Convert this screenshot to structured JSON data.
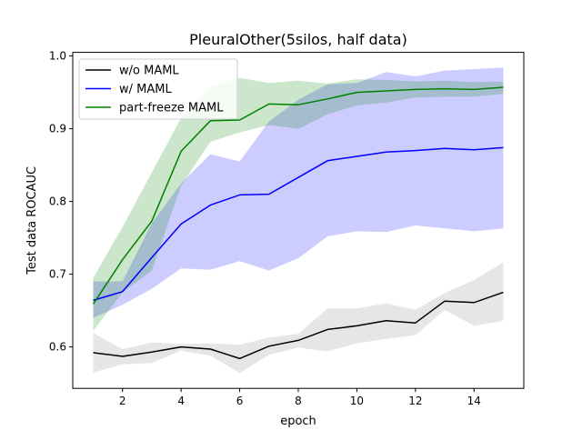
{
  "chart_data": {
    "type": "line",
    "title": "PleuralOther(5silos, half data)",
    "xlabel": "epoch",
    "ylabel": "Test data ROCAUC",
    "xlim": [
      0.3,
      15.7
    ],
    "ylim": [
      0.543,
      1.005
    ],
    "xticks": [
      2,
      4,
      6,
      8,
      10,
      12,
      14
    ],
    "yticks": [
      0.6,
      0.7,
      0.8,
      0.9,
      1.0
    ],
    "xtick_labels": [
      "2",
      "4",
      "6",
      "8",
      "10",
      "12",
      "14"
    ],
    "ytick_labels": [
      "0.6",
      "0.7",
      "0.8",
      "0.9",
      "1.0"
    ],
    "legend_position": "upper-left",
    "grid": false,
    "x": [
      1,
      2,
      3,
      4,
      5,
      6,
      7,
      8,
      9,
      10,
      11,
      12,
      13,
      14,
      15
    ],
    "series": [
      {
        "name": "w/o MAML",
        "color": "#000000",
        "band_color": "#808080",
        "values": [
          0.592,
          0.587,
          0.593,
          0.6,
          0.597,
          0.584,
          0.601,
          0.609,
          0.624,
          0.629,
          0.636,
          0.633,
          0.663,
          0.661,
          0.675
        ],
        "lower": [
          0.565,
          0.576,
          0.578,
          0.595,
          0.588,
          0.564,
          0.589,
          0.599,
          0.594,
          0.605,
          0.611,
          0.616,
          0.651,
          0.629,
          0.636
        ],
        "upper": [
          0.619,
          0.597,
          0.606,
          0.604,
          0.605,
          0.603,
          0.613,
          0.618,
          0.653,
          0.653,
          0.66,
          0.651,
          0.674,
          0.692,
          0.716
        ]
      },
      {
        "name": "w/ MAML",
        "color": "#0000ff",
        "band_color": "#0000ff",
        "values": [
          0.664,
          0.676,
          0.723,
          0.769,
          0.795,
          0.809,
          0.81,
          0.833,
          0.856,
          0.862,
          0.868,
          0.87,
          0.873,
          0.871,
          0.874
        ],
        "lower": [
          0.64,
          0.658,
          0.68,
          0.708,
          0.706,
          0.718,
          0.705,
          0.722,
          0.752,
          0.759,
          0.758,
          0.767,
          0.763,
          0.759,
          0.763
        ],
        "upper": [
          0.69,
          0.69,
          0.77,
          0.825,
          0.865,
          0.855,
          0.91,
          0.94,
          0.961,
          0.963,
          0.978,
          0.972,
          0.98,
          0.982,
          0.984
        ]
      },
      {
        "name": "part-freeze MAML",
        "color": "#008000",
        "band_color": "#008000",
        "values": [
          0.659,
          0.72,
          0.773,
          0.869,
          0.911,
          0.912,
          0.934,
          0.933,
          0.941,
          0.95,
          0.952,
          0.954,
          0.955,
          0.954,
          0.957
        ],
        "lower": [
          0.622,
          0.675,
          0.705,
          0.822,
          0.882,
          0.895,
          0.905,
          0.9,
          0.92,
          0.932,
          0.936,
          0.943,
          0.944,
          0.944,
          0.948
        ],
        "upper": [
          0.695,
          0.765,
          0.84,
          0.915,
          0.958,
          0.97,
          0.963,
          0.966,
          0.962,
          0.968,
          0.967,
          0.965,
          0.966,
          0.964,
          0.965
        ]
      }
    ]
  }
}
